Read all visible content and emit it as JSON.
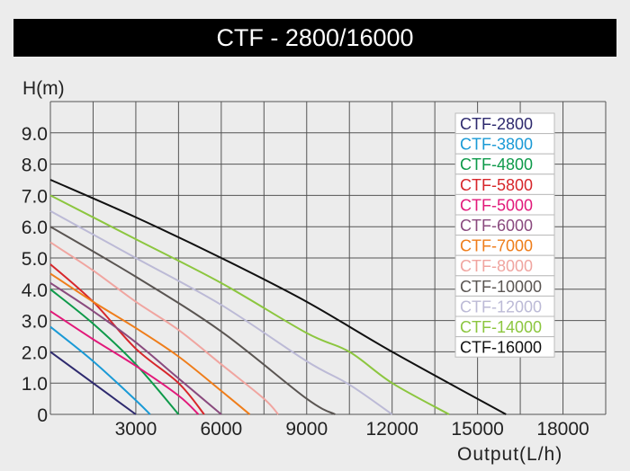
{
  "chart_data": {
    "type": "line",
    "title": "CTF - 2800/16000",
    "xlabel": "Output(L/h)",
    "ylabel": "H(m)",
    "xlim": [
      0,
      19500
    ],
    "ylim": [
      0,
      10
    ],
    "x_ticks": [
      3000,
      6000,
      9000,
      12000,
      15000,
      18000
    ],
    "x_tick_labels": [
      "3000",
      "6000",
      "9000",
      "12000",
      "15000",
      "18000"
    ],
    "y_ticks": [
      0,
      1,
      2,
      3,
      4,
      5,
      6,
      7,
      8,
      9
    ],
    "y_tick_labels": [
      "0",
      "1.0",
      "2.0",
      "3.0",
      "4.0",
      "5.0",
      "6.0",
      "7.0",
      "8.0",
      "9.0"
    ],
    "grid": true,
    "legend_position": "top-right",
    "series": [
      {
        "name": "CTF-2800",
        "color": "#2e2a6e",
        "points": [
          [
            0,
            2.0
          ],
          [
            1500,
            1.0
          ],
          [
            3000,
            0
          ]
        ]
      },
      {
        "name": "CTF-3800",
        "color": "#1a9ad6",
        "points": [
          [
            0,
            2.8
          ],
          [
            1500,
            1.7
          ],
          [
            3000,
            0.45
          ],
          [
            3500,
            0
          ]
        ]
      },
      {
        "name": "CTF-4800",
        "color": "#0e9a4a",
        "points": [
          [
            0,
            4.0
          ],
          [
            1500,
            2.9
          ],
          [
            3000,
            1.6
          ],
          [
            4500,
            0
          ]
        ]
      },
      {
        "name": "CTF-5800",
        "color": "#d7262b",
        "points": [
          [
            0,
            4.8
          ],
          [
            1500,
            3.6
          ],
          [
            3000,
            2.1
          ],
          [
            4500,
            1.0
          ],
          [
            5400,
            0
          ]
        ]
      },
      {
        "name": "CTF-5000",
        "color": "#e2197a",
        "points": [
          [
            0,
            3.3
          ],
          [
            1500,
            2.4
          ],
          [
            3000,
            1.55
          ],
          [
            4500,
            0.6
          ],
          [
            5200,
            0
          ]
        ]
      },
      {
        "name": "CTF-6000",
        "color": "#8a4a7e",
        "points": [
          [
            0,
            4.2
          ],
          [
            1500,
            3.3
          ],
          [
            3000,
            2.3
          ],
          [
            4500,
            1.15
          ],
          [
            6000,
            0
          ]
        ]
      },
      {
        "name": "CTF-7000",
        "color": "#ef7d1a",
        "points": [
          [
            0,
            4.5
          ],
          [
            1500,
            3.6
          ],
          [
            3000,
            2.76
          ],
          [
            4500,
            1.85
          ],
          [
            6000,
            0.75
          ],
          [
            7000,
            0
          ]
        ]
      },
      {
        "name": "CTF-8000",
        "color": "#f0a5a0",
        "points": [
          [
            0,
            5.5
          ],
          [
            1500,
            4.6
          ],
          [
            3000,
            3.6
          ],
          [
            4500,
            2.7
          ],
          [
            6000,
            1.6
          ],
          [
            7500,
            0.5
          ],
          [
            8000,
            0
          ]
        ]
      },
      {
        "name": "CTF-10000",
        "color": "#5a5552",
        "points": [
          [
            0,
            6.0
          ],
          [
            3000,
            4.4
          ],
          [
            6000,
            2.65
          ],
          [
            9000,
            0.5
          ],
          [
            10000,
            0
          ]
        ]
      },
      {
        "name": "CTF-12000",
        "color": "#bcbad6",
        "points": [
          [
            0,
            6.5
          ],
          [
            3000,
            5.0
          ],
          [
            6000,
            3.5
          ],
          [
            9000,
            1.7
          ],
          [
            10500,
            0.95
          ],
          [
            12000,
            0
          ]
        ]
      },
      {
        "name": "CTF-14000",
        "color": "#8cc63f",
        "points": [
          [
            0,
            7.0
          ],
          [
            3000,
            5.6
          ],
          [
            6000,
            4.2
          ],
          [
            9000,
            2.6
          ],
          [
            10500,
            2.0
          ],
          [
            12000,
            1.0
          ],
          [
            14000,
            0
          ]
        ]
      },
      {
        "name": "CTF-16000",
        "color": "#111111",
        "points": [
          [
            0,
            7.5
          ],
          [
            3000,
            6.3
          ],
          [
            6000,
            5.0
          ],
          [
            9000,
            3.6
          ],
          [
            12000,
            2.0
          ],
          [
            16000,
            0
          ]
        ]
      }
    ]
  }
}
